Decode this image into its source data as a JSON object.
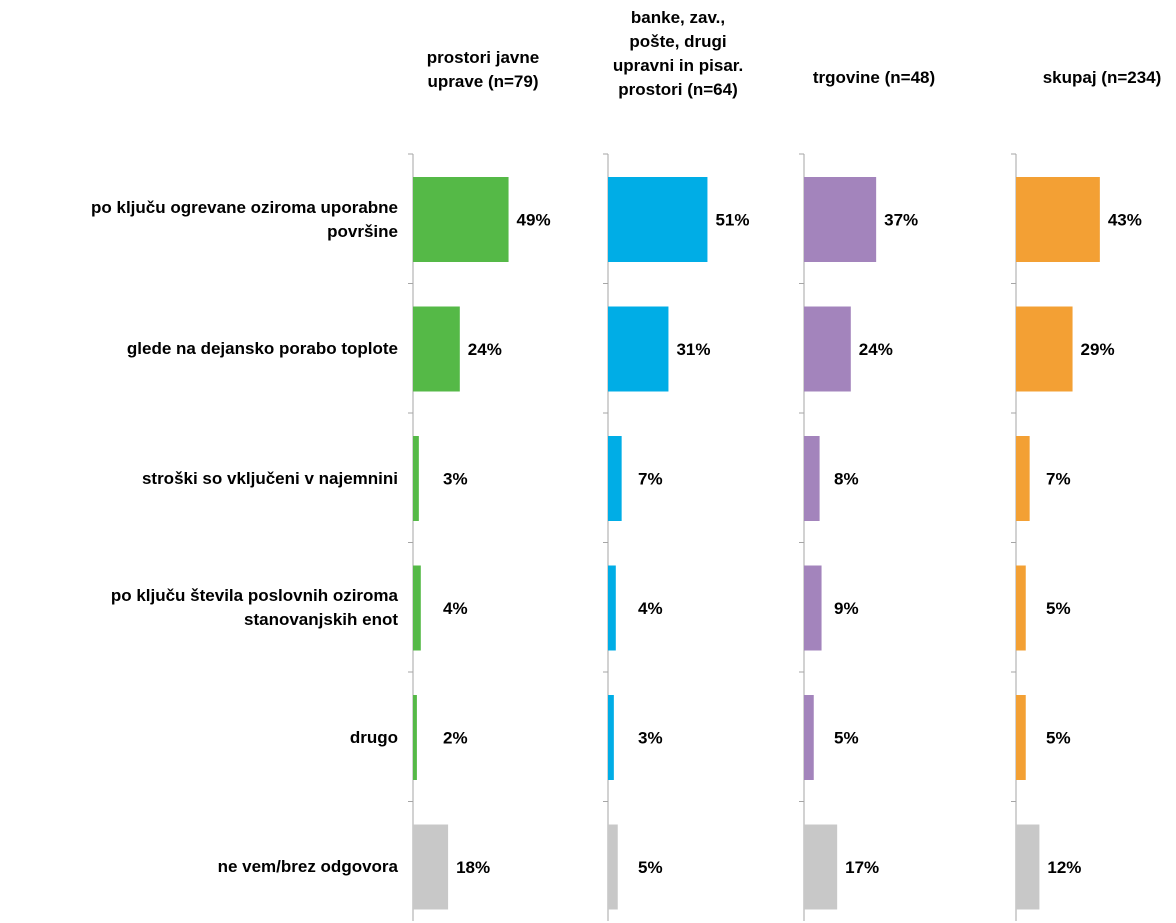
{
  "chart_data": {
    "type": "bar",
    "orientation": "horizontal",
    "categories": [
      "po ključu ogrevane oziroma uporabne\npovršine",
      "glede na dejansko porabo toplote",
      "stroški so vključeni v najemnini",
      "po ključu števila poslovnih oziroma\nstanovanjskih enot",
      "drugo",
      "ne vem/brez odgovora"
    ],
    "series": [
      {
        "name": "prostori javne\nuprave (n=79)",
        "color": "#55b947",
        "values": [
          49,
          24,
          3,
          4,
          2,
          18
        ],
        "labels": [
          "49%",
          "24%",
          "3%",
          "4%",
          "2%",
          "18%"
        ]
      },
      {
        "name": "banke, zav.,\npošte, drugi\nupravni in pisar.\nprostori (n=64)",
        "color": "#00ade6",
        "values": [
          51,
          31,
          7,
          4,
          3,
          5
        ],
        "labels": [
          "51%",
          "31%",
          "7%",
          "4%",
          "3%",
          "5%"
        ]
      },
      {
        "name": "trgovine (n=48)",
        "color": "#a384bc",
        "values": [
          37,
          24,
          8,
          9,
          5,
          17
        ],
        "labels": [
          "37%",
          "24%",
          "8%",
          "9%",
          "5%",
          "17%"
        ]
      },
      {
        "name": "skupaj (n=234)",
        "color": "#f3a034",
        "values": [
          43,
          29,
          7,
          5,
          5,
          12
        ],
        "labels": [
          "43%",
          "29%",
          "7%",
          "5%",
          "5%",
          "12%"
        ]
      }
    ],
    "last_category_color": "#c8c8c8",
    "axis_color": "#a6a6a6",
    "xlim": [
      0,
      100
    ],
    "grid": false,
    "legend": "none"
  }
}
